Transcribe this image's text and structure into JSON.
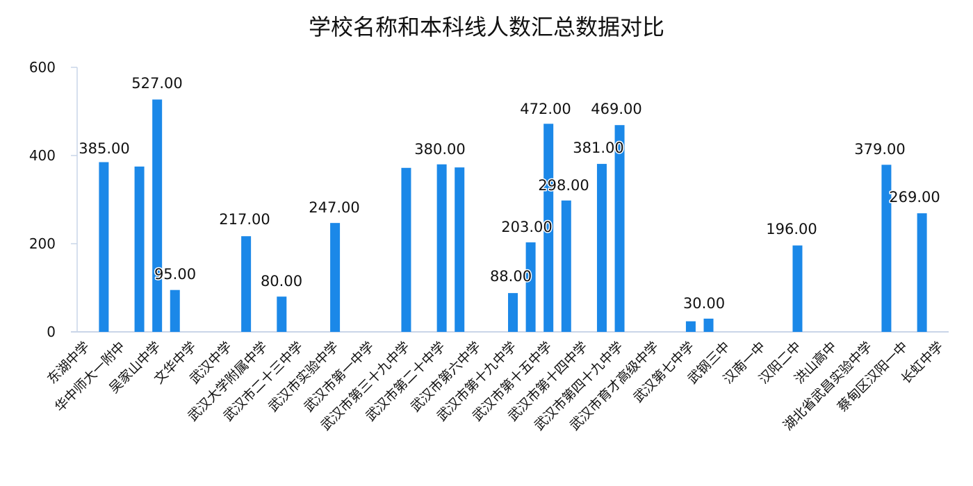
{
  "chart_data": {
    "type": "bar",
    "title": "学校名称和本科线人数汇总数据对比",
    "xlabel": "",
    "ylabel": "",
    "ylim": [
      0,
      600
    ],
    "yticks": [
      0,
      200,
      400,
      600
    ],
    "grid": false,
    "legend": null,
    "bar_color": "#1B88E8",
    "axis_color": "#C9D5E8",
    "category_count": 49,
    "labeled_categories": [
      {
        "index": 0,
        "label": "东湖中学"
      },
      {
        "index": 2,
        "label": "华中师大一附中"
      },
      {
        "index": 4,
        "label": "吴家山中学"
      },
      {
        "index": 6,
        "label": "文华中学"
      },
      {
        "index": 8,
        "label": "武汉中学"
      },
      {
        "index": 10,
        "label": "武汉大学附属中学"
      },
      {
        "index": 12,
        "label": "武汉市二十三中学"
      },
      {
        "index": 14,
        "label": "武汉市实验中学"
      },
      {
        "index": 16,
        "label": "武汉市第一中学"
      },
      {
        "index": 18,
        "label": "武汉市第三十九中学"
      },
      {
        "index": 20,
        "label": "武汉市第二十中学"
      },
      {
        "index": 22,
        "label": "武汉市第六中学"
      },
      {
        "index": 24,
        "label": "武汉市第十九中学"
      },
      {
        "index": 26,
        "label": "武汉市第十五中学"
      },
      {
        "index": 28,
        "label": "武汉市第十四中学"
      },
      {
        "index": 30,
        "label": "武汉市第四十九中学"
      },
      {
        "index": 32,
        "label": "武汉市育才高级中学"
      },
      {
        "index": 34,
        "label": "武汉第七中学"
      },
      {
        "index": 36,
        "label": "武钢三中"
      },
      {
        "index": 38,
        "label": "汉南一中"
      },
      {
        "index": 40,
        "label": "汉阳二中"
      },
      {
        "index": 42,
        "label": "洪山高中"
      },
      {
        "index": 44,
        "label": "湖北省武昌实验中学"
      },
      {
        "index": 46,
        "label": "蔡甸区汉阳一中"
      },
      {
        "index": 48,
        "label": "长虹中学"
      }
    ],
    "bars": [
      {
        "index": 1,
        "value": 385,
        "label": "385.00"
      },
      {
        "index": 3,
        "value": 375,
        "label": null
      },
      {
        "index": 4,
        "value": 527,
        "label": "527.00"
      },
      {
        "index": 5,
        "value": 95,
        "label": "95.00"
      },
      {
        "index": 9,
        "value": 217,
        "label": "217.00"
      },
      {
        "index": 11,
        "value": 80,
        "label": "80.00"
      },
      {
        "index": 14,
        "value": 247,
        "label": "247.00"
      },
      {
        "index": 18,
        "value": 372,
        "label": null
      },
      {
        "index": 20,
        "value": 380,
        "label": "380.00"
      },
      {
        "index": 21,
        "value": 373,
        "label": null
      },
      {
        "index": 24,
        "value": 88,
        "label": "88.00"
      },
      {
        "index": 25,
        "value": 203,
        "label": "203.00"
      },
      {
        "index": 26,
        "value": 472,
        "label": "472.00"
      },
      {
        "index": 27,
        "value": 298,
        "label": "298.00"
      },
      {
        "index": 29,
        "value": 381,
        "label": "381.00"
      },
      {
        "index": 30,
        "value": 469,
        "label": "469.00"
      },
      {
        "index": 34,
        "value": 24,
        "label": null
      },
      {
        "index": 35,
        "value": 30,
        "label": "30.00"
      },
      {
        "index": 40,
        "value": 196,
        "label": "196.00"
      },
      {
        "index": 45,
        "value": 379,
        "label": "379.00"
      },
      {
        "index": 47,
        "value": 269,
        "label": "269.00"
      }
    ],
    "data_label_positions": {
      "1": [
        150,
        221
      ],
      "4": [
        226,
        127
      ],
      "5": [
        252,
        402
      ],
      "9": [
        352,
        323
      ],
      "11": [
        405,
        412
      ],
      "14": [
        481,
        306
      ],
      "20": [
        633,
        222
      ],
      "24": [
        735,
        405
      ],
      "25": [
        758,
        334
      ],
      "26": [
        785,
        164
      ],
      "27": [
        811,
        274
      ],
      "29": [
        861,
        220
      ],
      "30": [
        887,
        164
      ],
      "35": [
        1013,
        444
      ],
      "40": [
        1139,
        337
      ],
      "45": [
        1266,
        222
      ],
      "47": [
        1316,
        291
      ]
    }
  }
}
